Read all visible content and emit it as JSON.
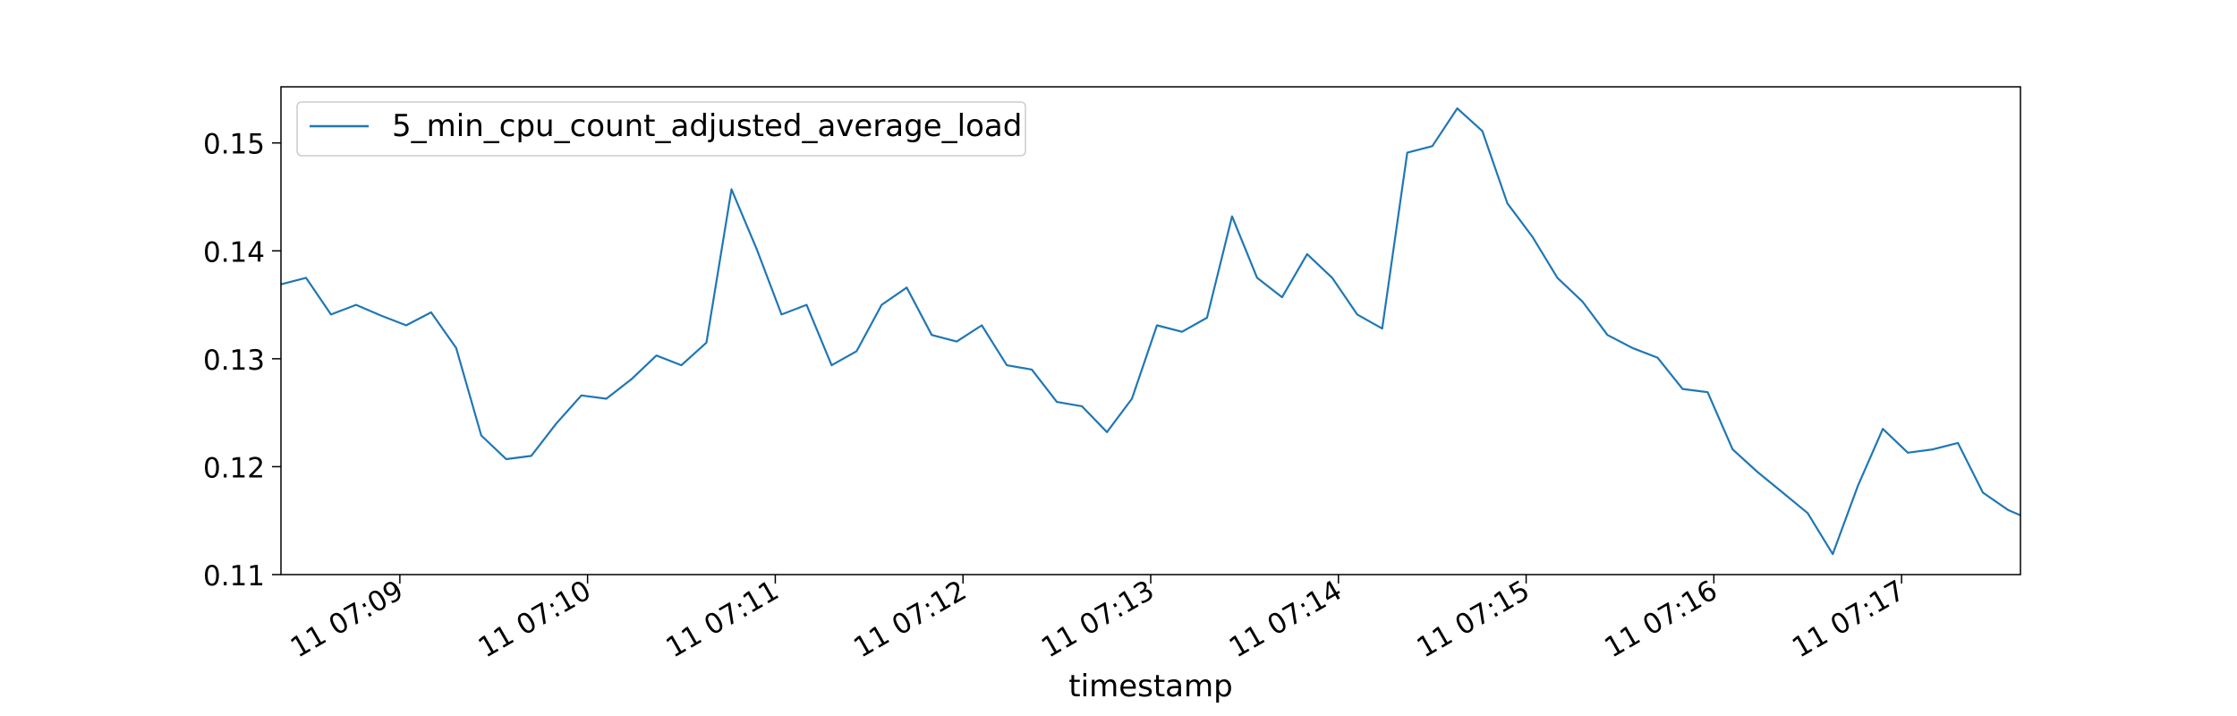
{
  "chart_data": {
    "type": "line",
    "xlabel": "timestamp",
    "ylabel": "",
    "ylim": [
      0.11,
      0.1552
    ],
    "xlim": [
      "07:08:22",
      "07:17:38"
    ],
    "yticks": [
      {
        "value": 0.11,
        "label": "0.11"
      },
      {
        "value": 0.12,
        "label": "0.12"
      },
      {
        "value": 0.13,
        "label": "0.13"
      },
      {
        "value": 0.14,
        "label": "0.14"
      },
      {
        "value": 0.15,
        "label": "0.15"
      }
    ],
    "xticks": [
      {
        "value": "07:09:00",
        "label": "11 07:09"
      },
      {
        "value": "07:10:00",
        "label": "11 07:10"
      },
      {
        "value": "07:11:00",
        "label": "11 07:11"
      },
      {
        "value": "07:12:00",
        "label": "11 07:12"
      },
      {
        "value": "07:13:00",
        "label": "11 07:13"
      },
      {
        "value": "07:14:00",
        "label": "11 07:14"
      },
      {
        "value": "07:15:00",
        "label": "11 07:15"
      },
      {
        "value": "07:16:00",
        "label": "11 07:16"
      },
      {
        "value": "07:17:00",
        "label": "11 07:17"
      }
    ],
    "legend_position": "top-left",
    "grid": false,
    "series": [
      {
        "name": "5_min_cpu_count_adjusted_average_load",
        "color": "#1f77b4",
        "x": [
          "07:08:22",
          "07:08:30",
          "07:08:38",
          "07:08:46",
          "07:08:54",
          "07:09:02",
          "07:09:10",
          "07:09:18",
          "07:09:26",
          "07:09:34",
          "07:09:42",
          "07:09:50",
          "07:09:58",
          "07:10:06",
          "07:10:14",
          "07:10:22",
          "07:10:30",
          "07:10:38",
          "07:10:46",
          "07:10:54",
          "07:11:02",
          "07:11:10",
          "07:11:18",
          "07:11:26",
          "07:11:34",
          "07:11:42",
          "07:11:50",
          "07:11:58",
          "07:12:06",
          "07:12:14",
          "07:12:22",
          "07:12:30",
          "07:12:38",
          "07:12:46",
          "07:12:54",
          "07:13:02",
          "07:13:10",
          "07:13:18",
          "07:13:26",
          "07:13:34",
          "07:13:42",
          "07:13:50",
          "07:13:58",
          "07:14:06",
          "07:14:14",
          "07:14:22",
          "07:14:30",
          "07:14:38",
          "07:14:46",
          "07:14:54",
          "07:15:02",
          "07:15:10",
          "07:15:18",
          "07:15:26",
          "07:15:34",
          "07:15:42",
          "07:15:50",
          "07:15:58",
          "07:16:06",
          "07:16:14",
          "07:16:22",
          "07:16:30",
          "07:16:38",
          "07:16:46",
          "07:16:54",
          "07:17:02",
          "07:17:10",
          "07:17:18",
          "07:17:26",
          "07:17:34",
          "07:17:38"
        ],
        "values": [
          0.1369,
          0.1375,
          0.1341,
          0.135,
          0.134,
          0.1331,
          0.1343,
          0.131,
          0.1229,
          0.1207,
          0.121,
          0.124,
          0.1266,
          0.1263,
          0.1281,
          0.1303,
          0.1294,
          0.1315,
          0.1457,
          0.1402,
          0.1341,
          0.135,
          0.1294,
          0.1307,
          0.135,
          0.1366,
          0.1322,
          0.1316,
          0.1331,
          0.1294,
          0.129,
          0.126,
          0.1256,
          0.1232,
          0.1263,
          0.1331,
          0.1325,
          0.1338,
          0.1432,
          0.1375,
          0.1357,
          0.1397,
          0.1375,
          0.1341,
          0.1328,
          0.1491,
          0.1497,
          0.1532,
          0.1511,
          0.1444,
          0.1413,
          0.1375,
          0.1353,
          0.1322,
          0.131,
          0.1301,
          0.1272,
          0.1269,
          0.1216,
          0.1195,
          0.1176,
          0.1157,
          0.1119,
          0.1182,
          0.1235,
          0.1213,
          0.1216,
          0.1222,
          0.1176,
          0.116,
          0.1155
        ]
      }
    ]
  }
}
